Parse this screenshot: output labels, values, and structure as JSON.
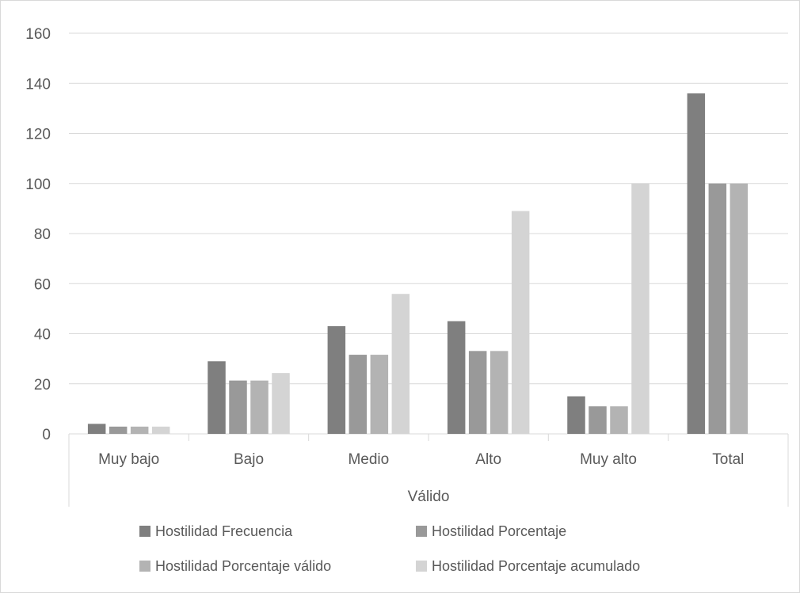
{
  "chart_data": {
    "type": "bar",
    "title": "",
    "xlabel": "",
    "ylabel": "",
    "group_label": "Válido",
    "categories": [
      "Muy bajo",
      "Bajo",
      "Medio",
      "Alto",
      "Muy alto",
      "Total"
    ],
    "ylim": [
      0,
      160
    ],
    "yticks": [
      0,
      20,
      40,
      60,
      80,
      100,
      120,
      140,
      160
    ],
    "grid": true,
    "legend": "bottom",
    "series": [
      {
        "name": "Hostilidad Frecuencia",
        "color": "#7f7f7f",
        "values": [
          4,
          29,
          43,
          45,
          15,
          136
        ]
      },
      {
        "name": "Hostilidad Porcentaje",
        "color": "#999999",
        "values": [
          2.9,
          21.3,
          31.6,
          33.1,
          11.0,
          100
        ]
      },
      {
        "name": "Hostilidad Porcentaje válido",
        "color": "#b3b3b3",
        "values": [
          2.9,
          21.3,
          31.6,
          33.1,
          11.0,
          100
        ]
      },
      {
        "name": "Hostilidad Porcentaje acumulado",
        "color": "#d4d4d4",
        "values": [
          2.9,
          24.3,
          55.9,
          89.0,
          100,
          null
        ]
      }
    ]
  }
}
